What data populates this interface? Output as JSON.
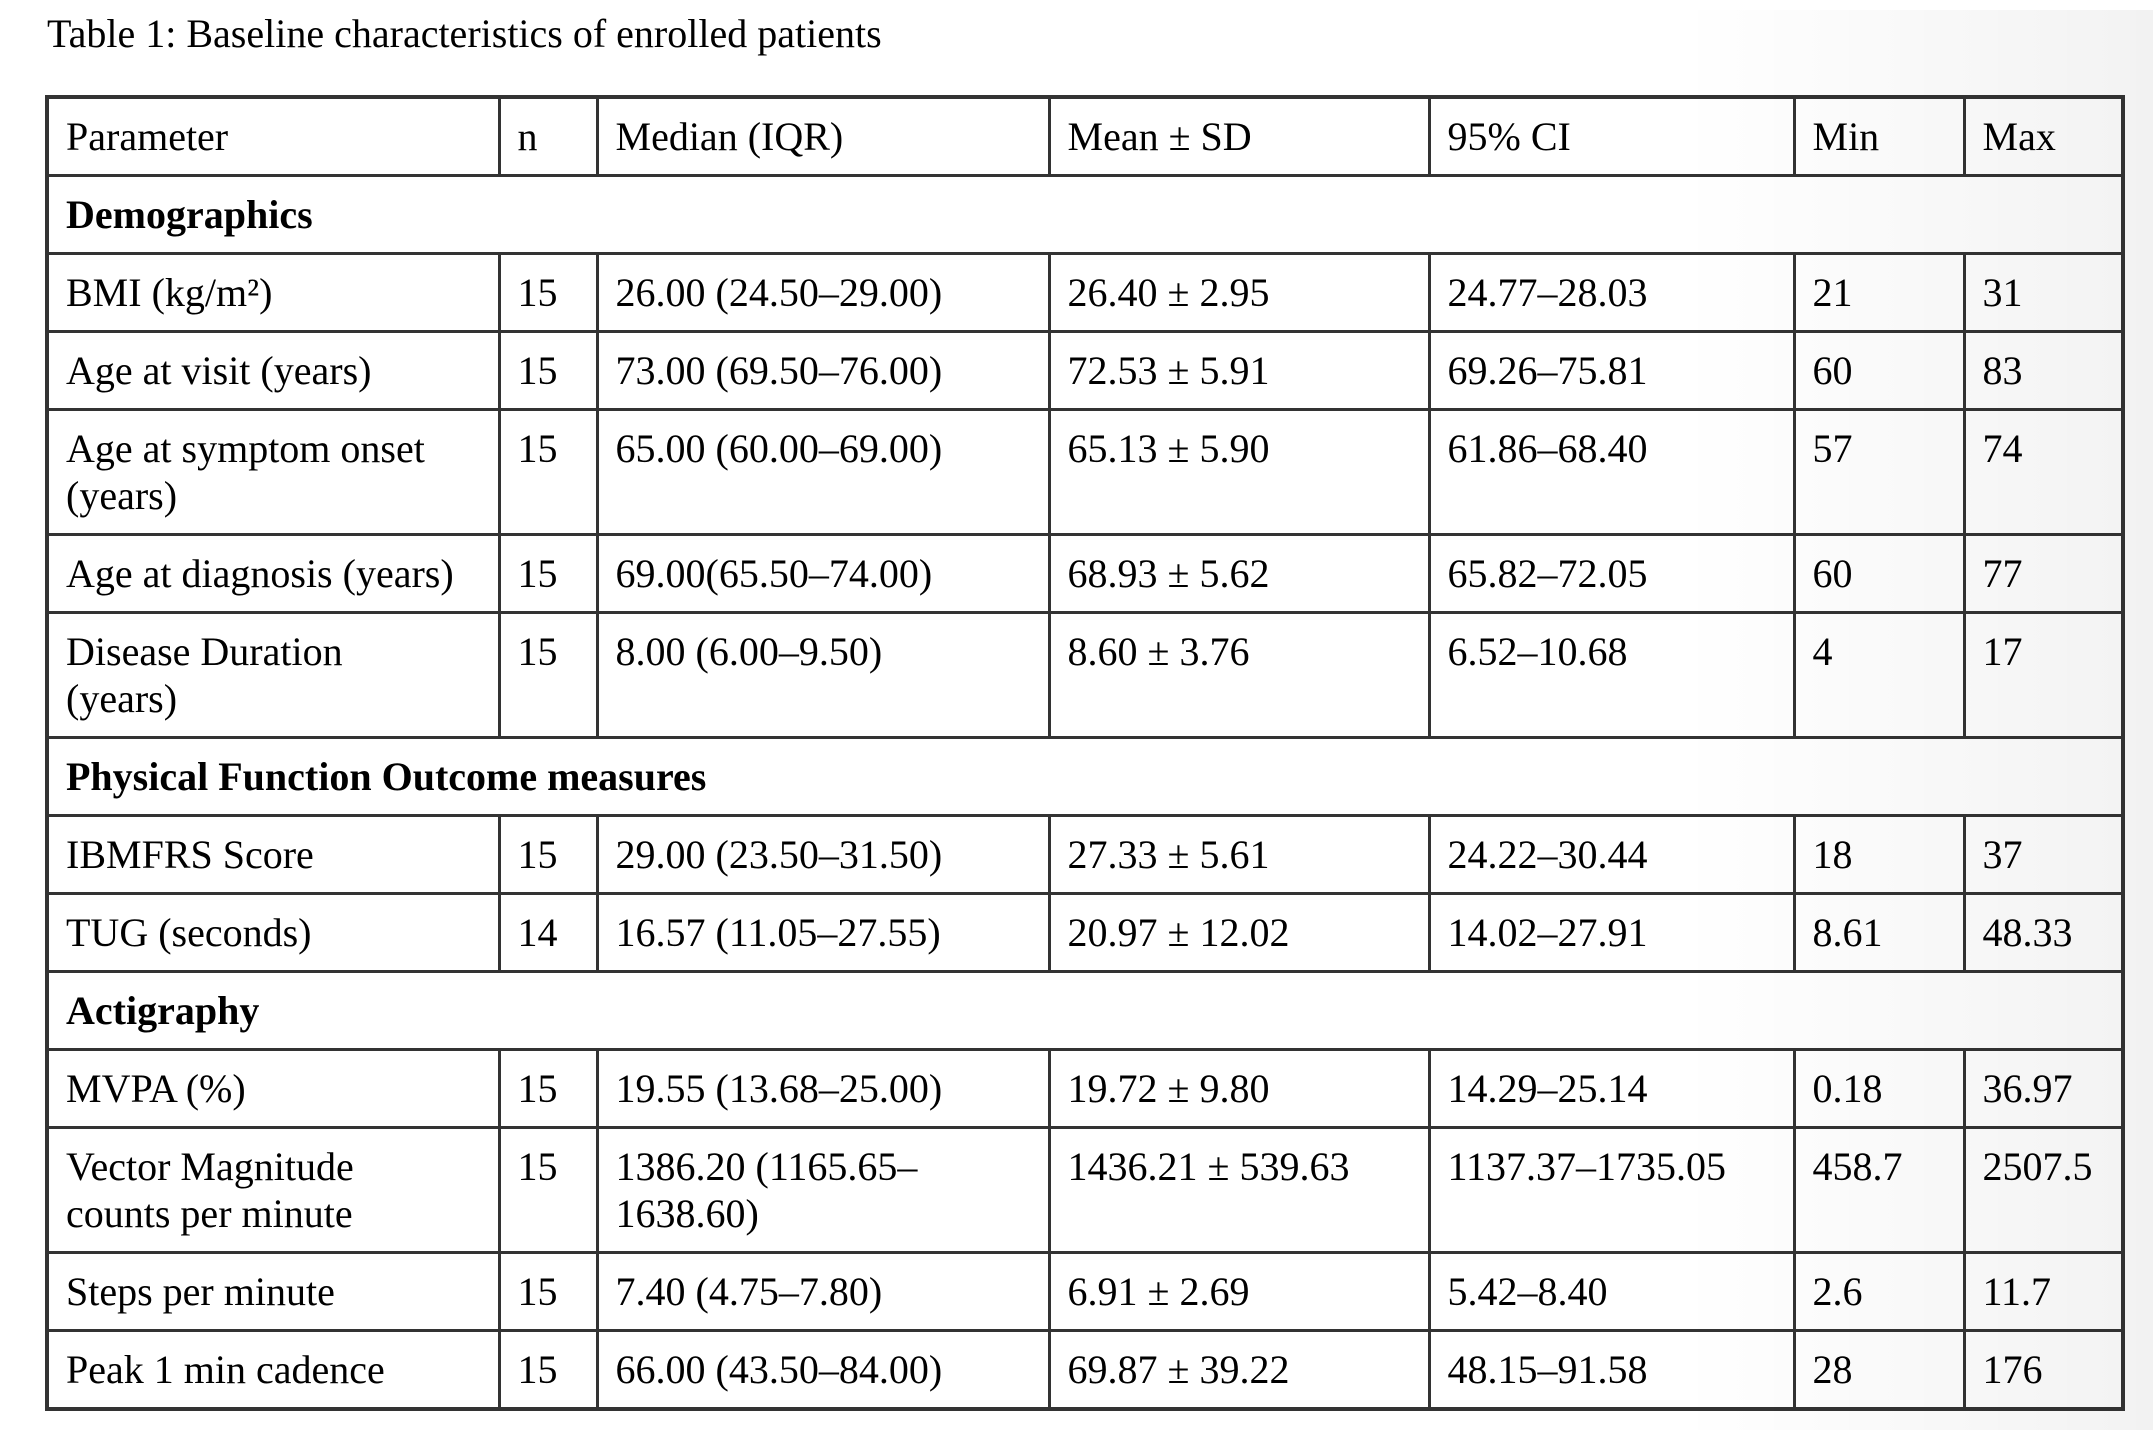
{
  "page_title": "Table 1: Baseline characteristics of enrolled patients",
  "colors": {
    "background": "#ffffff",
    "text": "#000000",
    "border": "#333333"
  },
  "table": {
    "columns": [
      {
        "key": "parameter",
        "label": "Parameter"
      },
      {
        "key": "n",
        "label": "n"
      },
      {
        "key": "median_iqr",
        "label": "Median (IQR)"
      },
      {
        "key": "mean_sd",
        "label": "Mean ± SD"
      },
      {
        "key": "ci_95",
        "label": "95% CI"
      },
      {
        "key": "min",
        "label": "Min"
      },
      {
        "key": "max",
        "label": "Max"
      }
    ],
    "sections": [
      {
        "label": "Demographics",
        "rows": [
          {
            "parameter": "BMI (kg/m²)",
            "n": "15",
            "median_iqr": "26.00 (24.50–29.00)",
            "mean_sd": "26.40 ± 2.95",
            "ci_95": "24.77–28.03",
            "min": "21",
            "max": "31"
          },
          {
            "parameter": "Age at visit (years)",
            "n": "15",
            "median_iqr": "73.00 (69.50–76.00)",
            "mean_sd": "72.53 ± 5.91",
            "ci_95": "69.26–75.81",
            "min": "60",
            "max": "83"
          },
          {
            "parameter": "Age at symptom onset\n(years)",
            "n": "15",
            "median_iqr": "65.00 (60.00–69.00)",
            "mean_sd": "65.13 ± 5.90",
            "ci_95": "61.86–68.40",
            "min": "57",
            "max": "74"
          },
          {
            "parameter": "Age at diagnosis (years)",
            "n": "15",
            "median_iqr": "69.00(65.50–74.00)",
            "mean_sd": "68.93 ± 5.62",
            "ci_95": "65.82–72.05",
            "min": "60",
            "max": "77"
          },
          {
            "parameter": "Disease Duration\n(years)",
            "n": "15",
            "median_iqr": "8.00 (6.00–9.50)",
            "mean_sd": "8.60 ± 3.76",
            "ci_95": "6.52–10.68",
            "min": "4",
            "max": "17"
          }
        ]
      },
      {
        "label": "Physical Function Outcome measures",
        "rows": [
          {
            "parameter": "IBMFRS Score",
            "n": "15",
            "median_iqr": "29.00 (23.50–31.50)",
            "mean_sd": "27.33 ± 5.61",
            "ci_95": "24.22–30.44",
            "min": "18",
            "max": "37"
          },
          {
            "parameter": "TUG (seconds)",
            "n": "14",
            "median_iqr": "16.57 (11.05–27.55)",
            "mean_sd": "20.97 ± 12.02",
            "ci_95": "14.02–27.91",
            "min": "8.61",
            "max": "48.33"
          }
        ]
      },
      {
        "label": "Actigraphy",
        "rows": [
          {
            "parameter": "MVPA (%)",
            "n": "15",
            "median_iqr": "19.55 (13.68–25.00)",
            "mean_sd": "19.72 ± 9.80",
            "ci_95": "14.29–25.14",
            "min": "0.18",
            "max": "36.97"
          },
          {
            "parameter": "Vector Magnitude\ncounts per minute",
            "n": "15",
            "median_iqr": "1386.20 (1165.65–\n1638.60)",
            "mean_sd": "1436.21 ± 539.63",
            "ci_95": "1137.37–1735.05",
            "min": "458.7",
            "max": "2507.5"
          },
          {
            "parameter": "Steps per minute",
            "n": "15",
            "median_iqr": "7.40 (4.75–7.80)",
            "mean_sd": "6.91 ± 2.69",
            "ci_95": "5.42–8.40",
            "min": "2.6",
            "max": "11.7"
          },
          {
            "parameter": "Peak 1 min cadence",
            "n": "15",
            "median_iqr": "66.00 (43.50–84.00)",
            "mean_sd": "69.87 ± 39.22",
            "ci_95": "48.15–91.58",
            "min": "28",
            "max": "176"
          }
        ]
      }
    ]
  }
}
